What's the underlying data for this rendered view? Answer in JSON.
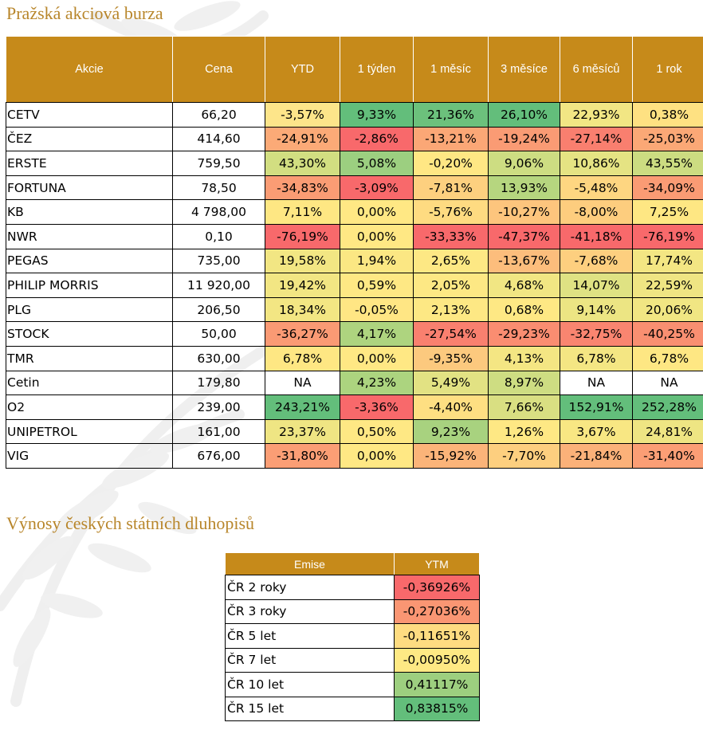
{
  "section1": {
    "title": "Pražská akciová burza",
    "columns": [
      "Akcie",
      "Cena",
      "YTD",
      "1 týden",
      "1 měsíc",
      "3 měsíce",
      "6 měsíců",
      "1 rok"
    ],
    "rows": [
      {
        "name": "CETV",
        "price": "66,20",
        "values": [
          "-3,57%",
          "9,33%",
          "21,36%",
          "26,10%",
          "22,93%",
          "0,38%"
        ],
        "colors": [
          "#fde58a",
          "#63be7b",
          "#6cc17c",
          "#63be7b",
          "#f2e684",
          "#fee182"
        ]
      },
      {
        "name": "ČEZ",
        "price": "414,60",
        "values": [
          "-24,91%",
          "-2,86%",
          "-13,21%",
          "-19,24%",
          "-27,14%",
          "-25,03%"
        ],
        "colors": [
          "#fbaa77",
          "#f8696b",
          "#fba776",
          "#fa9b74",
          "#f97f6f",
          "#fba876"
        ]
      },
      {
        "name": "ERSTE",
        "price": "759,50",
        "values": [
          "43,30%",
          "5,08%",
          "-0,20%",
          "9,06%",
          "10,86%",
          "43,55%"
        ],
        "colors": [
          "#d2de81",
          "#9ccf80",
          "#ffe784",
          "#cddd82",
          "#e5e383",
          "#ccdc81"
        ]
      },
      {
        "name": "FORTUNA",
        "price": "78,50",
        "values": [
          "-34,83%",
          "-3,09%",
          "-7,81%",
          "13,93%",
          "-5,48%",
          "-34,09%"
        ],
        "colors": [
          "#fa9c74",
          "#f8696b",
          "#fdd07f",
          "#b6d67f",
          "#fed681",
          "#fa9b74"
        ]
      },
      {
        "name": "KB",
        "price": "4 798,00",
        "values": [
          "7,11%",
          "0,00%",
          "-5,76%",
          "-10,27%",
          "-8,00%",
          "7,25%"
        ],
        "colors": [
          "#fee783",
          "#ffe884",
          "#fedb81",
          "#fdc57d",
          "#fdcd7e",
          "#fee783"
        ]
      },
      {
        "name": "NWR",
        "price": "0,10",
        "values": [
          "-76,19%",
          "0,00%",
          "-33,33%",
          "-47,37%",
          "-41,18%",
          "-76,19%"
        ],
        "colors": [
          "#f8696b",
          "#ffe884",
          "#f8696b",
          "#f8696b",
          "#f8696b",
          "#f8696b"
        ]
      },
      {
        "name": "PEGAS",
        "price": "735,00",
        "values": [
          "19,58%",
          "1,94%",
          "2,65%",
          "-13,67%",
          "-7,68%",
          "17,74%"
        ],
        "colors": [
          "#f2e683",
          "#fbe783",
          "#fde884",
          "#fcbd7c",
          "#fdcf7f",
          "#f3e683"
        ]
      },
      {
        "name": "PHILIP MORRIS",
        "price": "11 920,00",
        "values": [
          "19,42%",
          "0,59%",
          "2,05%",
          "4,68%",
          "14,07%",
          "22,59%"
        ],
        "colors": [
          "#f2e683",
          "#fee884",
          "#fde884",
          "#f1e683",
          "#dfe283",
          "#efe583"
        ]
      },
      {
        "name": "PLG",
        "price": "206,50",
        "values": [
          "18,34%",
          "-0,05%",
          "2,13%",
          "0,68%",
          "9,14%",
          "20,06%"
        ],
        "colors": [
          "#f3e683",
          "#ffe684",
          "#fde884",
          "#fee884",
          "#ece583",
          "#f1e683"
        ]
      },
      {
        "name": "STOCK",
        "price": "50,00",
        "values": [
          "-36,27%",
          "4,17%",
          "-27,54%",
          "-29,23%",
          "-32,75%",
          "-40,25%"
        ],
        "colors": [
          "#fa9a74",
          "#aed47f",
          "#f9806f",
          "#fa8d71",
          "#f98570",
          "#f98f71"
        ]
      },
      {
        "name": "TMR",
        "price": "630,00",
        "values": [
          "6,78%",
          "0,00%",
          "-9,35%",
          "4,13%",
          "6,78%",
          "6,78%"
        ],
        "colors": [
          "#fee783",
          "#ffe884",
          "#fcc97e",
          "#f4e683",
          "#f4e683",
          "#fee783"
        ]
      },
      {
        "name": "Cetin",
        "price": "179,80",
        "values": [
          "NA",
          "4,23%",
          "5,49%",
          "8,97%",
          "NA",
          "NA"
        ],
        "colors": [
          "#ffffff",
          "#acd47f",
          "#e2e283",
          "#cedd82",
          "#ffffff",
          "#ffffff"
        ]
      },
      {
        "name": "O2",
        "price": "239,00",
        "values": [
          "243,21%",
          "-3,36%",
          "-4,40%",
          "7,66%",
          "152,91%",
          "252,28%"
        ],
        "colors": [
          "#63be7b",
          "#f8696b",
          "#fedf82",
          "#d9df82",
          "#63be7b",
          "#63be7b"
        ]
      },
      {
        "name": "UNIPETROL",
        "price": "161,00",
        "values": [
          "23,37%",
          "0,50%",
          "9,23%",
          "1,26%",
          "3,67%",
          "24,81%"
        ],
        "colors": [
          "#efe583",
          "#fee884",
          "#a8d27f",
          "#fee884",
          "#f8e783",
          "#eee583"
        ]
      },
      {
        "name": "VIG",
        "price": "676,00",
        "values": [
          "-31,80%",
          "0,00%",
          "-15,92%",
          "-7,70%",
          "-21,84%",
          "-31,40%"
        ],
        "colors": [
          "#fb9e75",
          "#ffe884",
          "#fbb479",
          "#fdcf7f",
          "#fbb179",
          "#fb9e75"
        ]
      }
    ]
  },
  "section2": {
    "title": "Výnosy českých státních dluhopisů",
    "columns": [
      "Emise",
      "YTM"
    ],
    "rows": [
      {
        "name": "ČR 2 roky",
        "value": "-0,36926%",
        "color": "#f8696b"
      },
      {
        "name": "ČR 3 roky",
        "value": "-0,27036%",
        "color": "#fa9673"
      },
      {
        "name": "ČR 5 let",
        "value": "-0,11651%",
        "color": "#fedc81"
      },
      {
        "name": "ČR 7 let",
        "value": "-0,00950%",
        "color": "#fee984"
      },
      {
        "name": "ČR 10 let",
        "value": "0,41117%",
        "color": "#9dcf7f"
      },
      {
        "name": "ČR 15 let",
        "value": "0,83815%",
        "color": "#63be7b"
      }
    ]
  }
}
